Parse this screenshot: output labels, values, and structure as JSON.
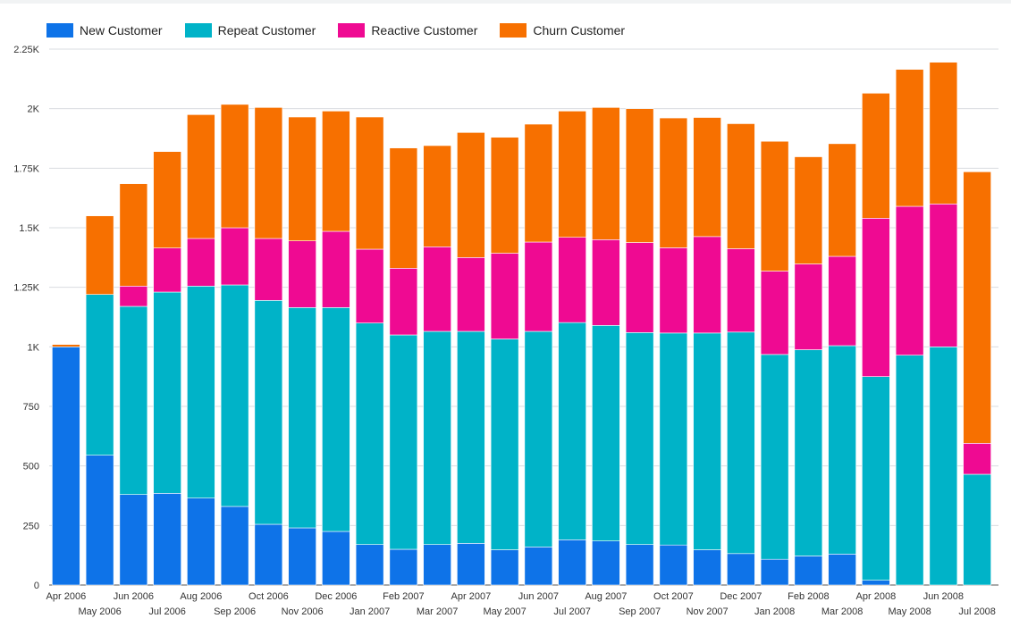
{
  "chart_data": {
    "type": "bar",
    "stacked": true,
    "categories": [
      "Apr 2006",
      "May 2006",
      "Jun 2006",
      "Jul 2006",
      "Aug 2006",
      "Sep 2006",
      "Oct 2006",
      "Nov 2006",
      "Dec 2006",
      "Jan 2007",
      "Feb 2007",
      "Mar 2007",
      "Apr 2007",
      "May 2007",
      "Jun 2007",
      "Jul 2007",
      "Aug 2007",
      "Sep 2007",
      "Oct 2007",
      "Nov 2007",
      "Dec 2007",
      "Jan 2008",
      "Feb 2008",
      "Mar 2008",
      "Apr 2008",
      "May 2008",
      "Jun 2008",
      "Jul 2008"
    ],
    "series": [
      {
        "name": "New Customer",
        "color": "#0e73e8",
        "values": [
          1000,
          545,
          380,
          385,
          365,
          330,
          255,
          240,
          225,
          170,
          150,
          170,
          175,
          148,
          160,
          190,
          185,
          170,
          168,
          148,
          132,
          108,
          122,
          130,
          20,
          0,
          0,
          0
        ]
      },
      {
        "name": "Repeat Customer",
        "color": "#00b3c8",
        "values": [
          0,
          675,
          790,
          845,
          890,
          930,
          940,
          925,
          940,
          930,
          900,
          895,
          890,
          885,
          905,
          912,
          905,
          890,
          890,
          910,
          930,
          860,
          866,
          875,
          855,
          965,
          1000,
          465
        ]
      },
      {
        "name": "Reactive Customer",
        "color": "#ef0a92",
        "values": [
          0,
          0,
          85,
          185,
          200,
          240,
          260,
          280,
          320,
          310,
          280,
          355,
          310,
          360,
          375,
          358,
          360,
          378,
          358,
          405,
          350,
          350,
          360,
          375,
          665,
          625,
          600,
          130
        ]
      },
      {
        "name": "Churn Customer",
        "color": "#f77000",
        "values": [
          10,
          330,
          430,
          405,
          520,
          518,
          550,
          520,
          505,
          555,
          505,
          425,
          525,
          487,
          495,
          530,
          555,
          562,
          545,
          500,
          525,
          545,
          450,
          473,
          525,
          575,
          595,
          1140
        ]
      }
    ],
    "ylim": [
      0,
      2250
    ],
    "yticks": [
      0,
      250,
      500,
      750,
      1000,
      1250,
      1500,
      1750,
      2000,
      2250
    ],
    "ytick_labels": [
      "0",
      "250",
      "500",
      "750",
      "1K",
      "1.25K",
      "1.5K",
      "1.75K",
      "2K",
      "2.25K"
    ],
    "grid": true,
    "legend_position": "top-left"
  }
}
